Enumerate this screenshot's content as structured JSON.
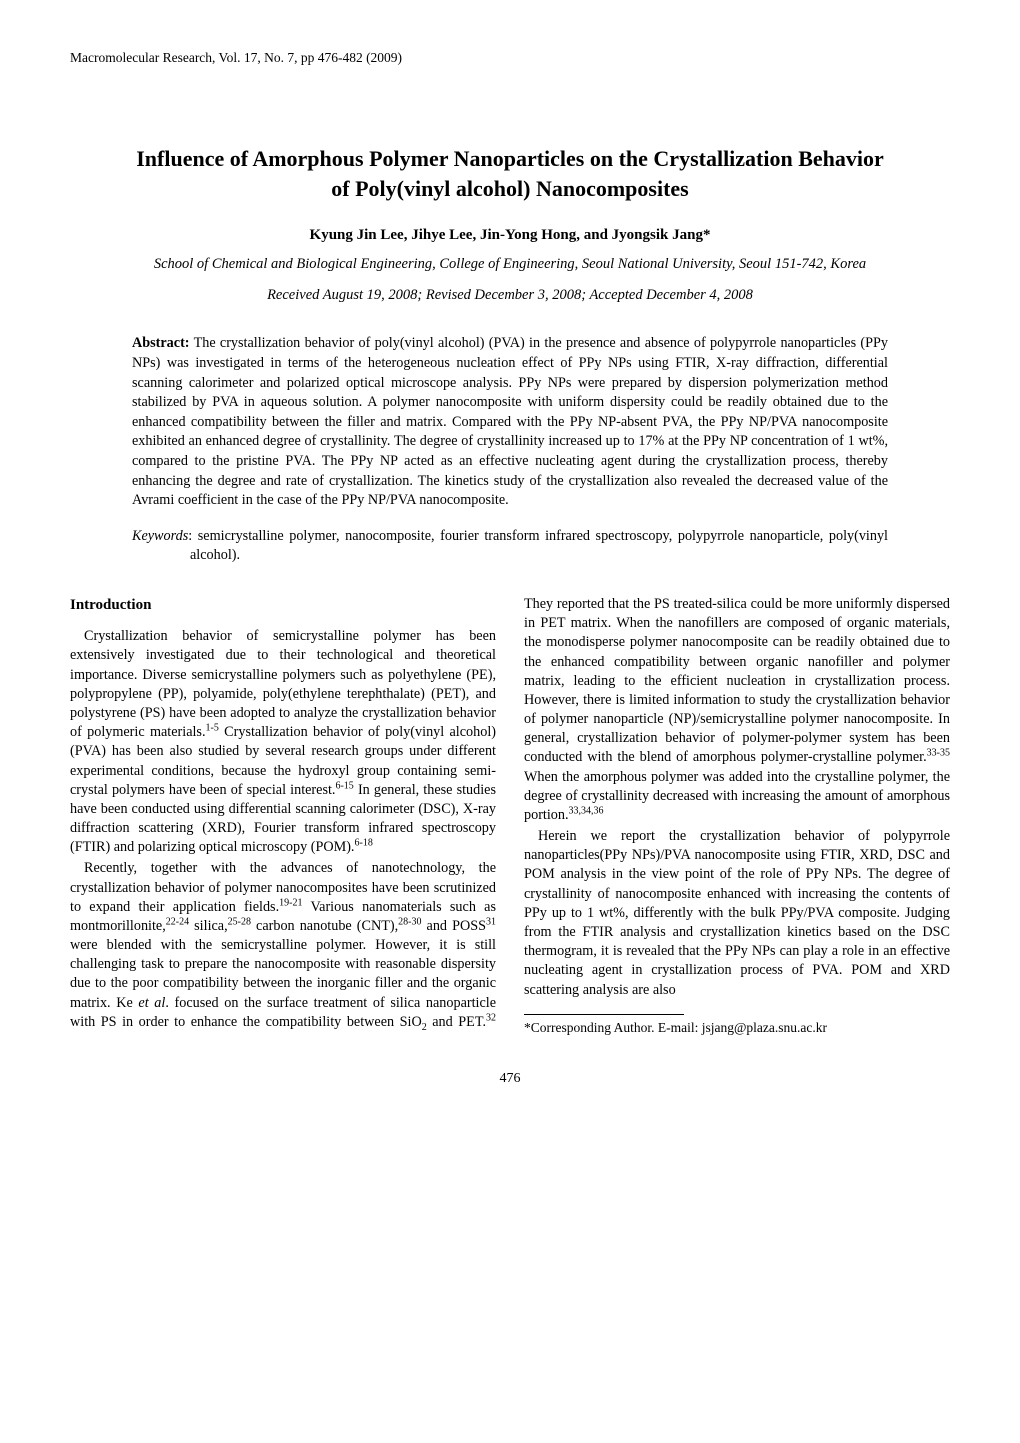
{
  "journal_header": "Macromolecular Research, Vol. 17, No. 7, pp 476-482 (2009)",
  "title_line1": "Influence of Amorphous Polymer Nanoparticles on the Crystallization Behavior",
  "title_line2": "of Poly(vinyl alcohol) Nanocomposites",
  "authors": "Kyung Jin Lee, Jihye Lee, Jin-Yong Hong, and Jyongsik Jang*",
  "affiliation": "School of Chemical and Biological Engineering, College of Engineering, Seoul National University, Seoul 151-742, Korea",
  "dates": "Received August 19, 2008; Revised December 3, 2008; Accepted December 4, 2008",
  "abstract_label": "Abstract:",
  "abstract_text": " The crystallization behavior of poly(vinyl alcohol) (PVA) in the presence and absence of polypyrrole nanoparticles (PPy NPs) was investigated in terms of the heterogeneous nucleation effect of PPy NPs using FTIR, X-ray diffraction, differential scanning calorimeter and polarized optical microscope analysis. PPy NPs were prepared by dispersion polymerization method stabilized by PVA in aqueous solution. A polymer nanocomposite with uniform dispersity could be readily obtained due to the enhanced compatibility between the filler and matrix. Compared with the PPy NP-absent PVA, the PPy NP/PVA nanocomposite exhibited an enhanced degree of crystallinity. The degree of crystallinity increased up to 17% at the PPy NP concentration of 1 wt%, compared to the pristine PVA. The PPy NP acted as an effective nucleating agent during the crystallization process, thereby enhancing the degree and rate of crystallization. The kinetics study of the crystallization also revealed the decreased value of the Avrami coefficient in the case of the PPy NP/PVA nanocomposite.",
  "keywords_label": "Keywords",
  "keywords_text": ": semicrystalline polymer, nanocomposite, fourier transform infrared spectroscopy, polypyrrole nanoparticle, poly(vinyl alcohol).",
  "section_intro": "Introduction",
  "intro_p1_a": "Crystallization behavior of semicrystalline polymer has been extensively investigated due to their technological and theoretical importance. Diverse semicrystalline polymers such as polyethylene (PE), polypropylene (PP), polyamide, poly(ethylene terephthalate) (PET), and polystyrene (PS) have been adopted to analyze the crystallization behavior of polymeric materials.",
  "intro_p1_sup1": "1-5",
  "intro_p1_b": " Crystallization behavior of poly(vinyl alcohol) (PVA) has been also studied by several research groups under different experimental conditions, because the hydroxyl group containing semi-crystal polymers have been of special interest.",
  "intro_p1_sup2": "6-15",
  "intro_p1_c": " In general, these studies have been conducted using differential scanning calorimeter (DSC), X-ray diffraction scattering (XRD), Fourier transform infrared spectroscopy (FTIR) and polarizing optical microscopy (POM).",
  "intro_p1_sup3": "6-18",
  "intro_p2_a": "Recently, together with the advances of nanotechnology, the crystallization behavior of polymer nanocomposites have been scrutinized to expand their application fields.",
  "intro_p2_sup1": "19-21",
  "intro_p2_b": " Various nanomaterials such as montmorillonite,",
  "intro_p2_sup2": "22-24",
  "intro_p2_c": " silica,",
  "intro_p2_sup3": "25-28",
  "intro_p2_d": " carbon nanotube (CNT),",
  "intro_p2_sup4": "28-30",
  "intro_p2_e": " and POSS",
  "intro_p2_sup5": "31",
  "intro_p2_f": " were blended with the semicrystalline polymer. However, it is still challenging task to prepare the nanocomposite with reasonable dispersity due to the poor compatibility between the inorganic filler and the organic matrix. Ke ",
  "intro_p2_g_ital": "et al",
  "intro_p2_h": ". focused on the surface treatment of silica nanoparticle with PS in order to enhance the compatibility between SiO",
  "intro_p2_sub1": "2",
  "intro_p2_i": " and PET.",
  "intro_p2_sup6": "32",
  "intro_p2_j": " They reported that the PS treated-silica could be more uniformly dispersed in PET matrix. When the nanofillers are composed of organic materials, the monodisperse polymer nanocomposite can be readily obtained due to the enhanced compatibility between organic nanofiller and polymer matrix, leading to the efficient nucleation in crystallization process. However, there is limited information to study the crystallization behavior of polymer nanoparticle (NP)/semicrystalline polymer nanocomposite. In general, crystallization behavior of polymer-polymer system has been conducted with the blend of amorphous polymer-crystalline polymer.",
  "intro_p2_sup7": "33-35",
  "intro_p2_k": " When the amorphous polymer was added into the crystalline polymer, the degree of crystallinity decreased with increasing the amount of amorphous portion.",
  "intro_p2_sup8": "33,34,36",
  "intro_p3": "Herein we report the crystallization behavior of polypyrrole nanoparticles(PPy NPs)/PVA nanocomposite using FTIR, XRD, DSC and POM analysis in the view point of the role of PPy NPs. The degree of crystallinity of nanocomposite enhanced with increasing the contents of PPy up to 1 wt%, differently with the bulk PPy/PVA composite. Judging from the FTIR analysis and crystallization kinetics based on the DSC thermogram, it is revealed that the PPy NPs can play a role in an effective nucleating agent in crystallization process of PVA. POM and XRD scattering analysis are also",
  "footnote": "*Corresponding Author. E-mail: jsjang@plaza.snu.ac.kr",
  "page_number": "476"
}
